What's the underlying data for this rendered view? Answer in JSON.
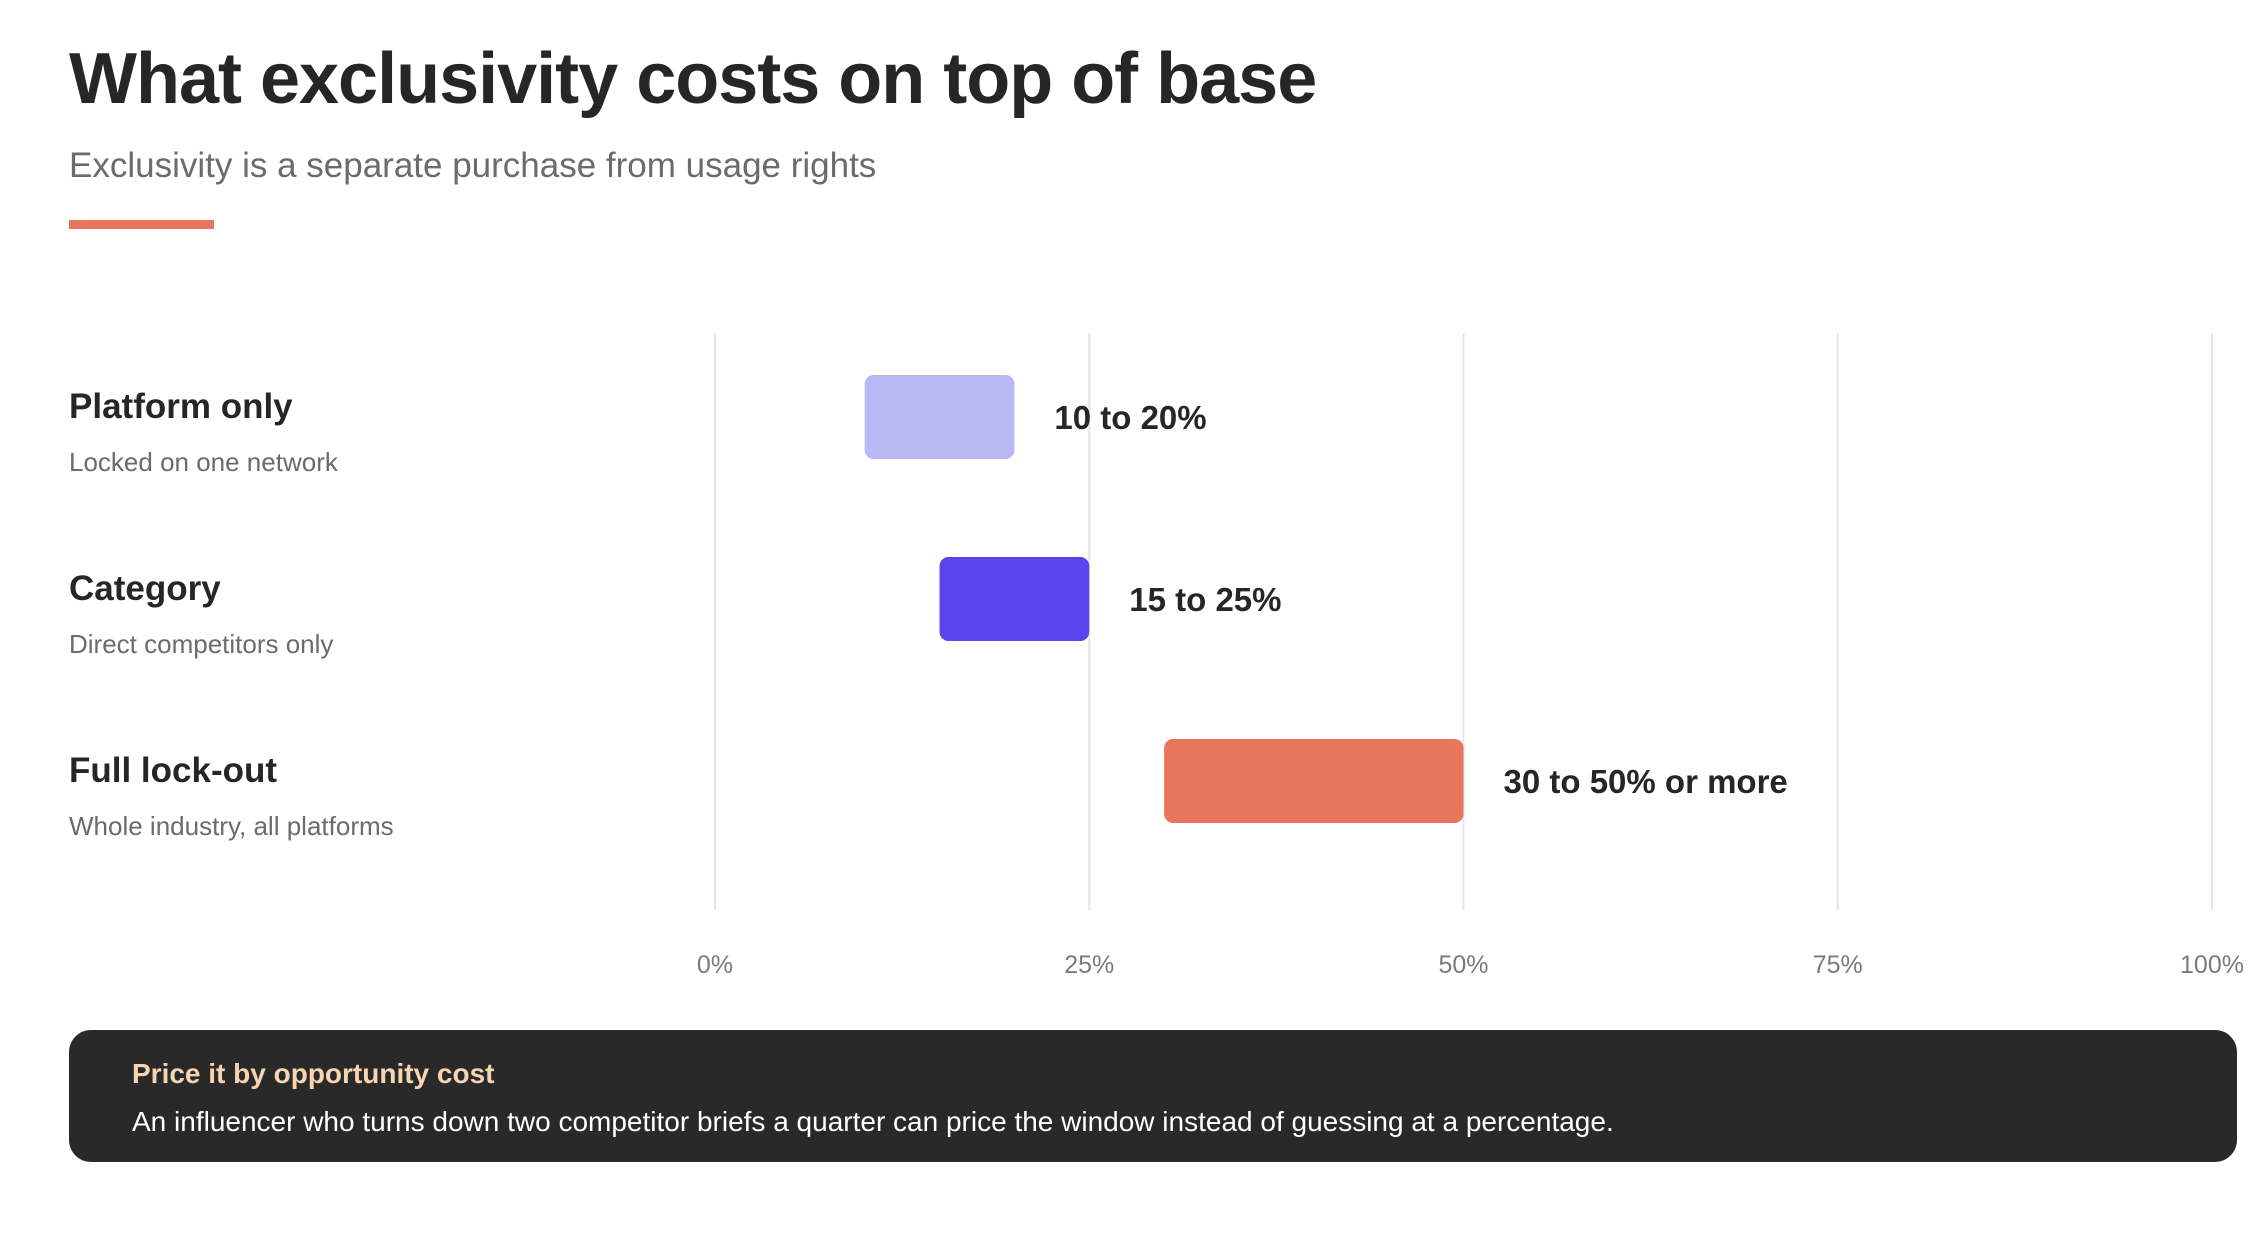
{
  "header": {
    "title": "What exclusivity costs on top of base",
    "subtitle": "Exclusivity is a separate purchase from usage rights"
  },
  "colors": {
    "accent": "#e8765f",
    "platform_only": "#b6b9f4",
    "category": "#5b44ee",
    "full_lockout": "#e8765f",
    "grid": "#e6e6e6"
  },
  "chart_data": {
    "type": "bar",
    "orientation": "horizontal",
    "xlim": [
      0,
      100
    ],
    "x_ticks": [
      "0%",
      "25%",
      "50%",
      "75%",
      "100%"
    ],
    "x_tick_values": [
      0,
      25,
      50,
      75,
      100
    ],
    "grid": true,
    "series": [
      {
        "name": "Platform only",
        "description": "Locked on one network",
        "low": 10,
        "high": 20,
        "label": "10 to 20%",
        "color": "#b6b9f4"
      },
      {
        "name": "Category",
        "description": "Direct competitors only",
        "low": 15,
        "high": 25,
        "label": "15 to 25%",
        "color": "#5b44ee"
      },
      {
        "name": "Full lock-out",
        "description": "Whole industry, all platforms",
        "low": 30,
        "high": 50,
        "label": "30 to 50% or more",
        "color": "#e8765f"
      }
    ]
  },
  "callout": {
    "title": "Price it by opportunity cost",
    "body": "An influencer who turns down two competitor briefs a quarter can price the window instead of guessing at a percentage."
  }
}
